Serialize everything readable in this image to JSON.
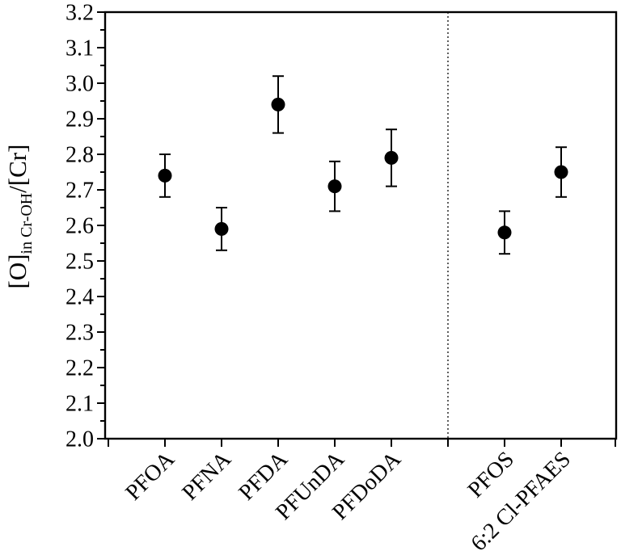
{
  "window": {
    "background": "#ffffff"
  },
  "chart_data": {
    "type": "scatter",
    "title": "",
    "xlabel": "",
    "ylabel": {
      "base": "[O]",
      "subscript": "in Cr-OH",
      "suffix": "/[Cr]",
      "plain": "[O]in Cr-OH/[Cr]"
    },
    "ylim": [
      2.0,
      3.2
    ],
    "y_major_step": 0.1,
    "y_minor_step": 0.05,
    "y_tick_decimals": 1,
    "categories": [
      "PFOA",
      "PFNA",
      "PFDA",
      "PFUnDA",
      "PFDoDA",
      "PFOS",
      "6:2 Cl-PFAES"
    ],
    "series": [
      {
        "name": "O-in-Cr-OH-to-Cr-ratio",
        "marker": "circle",
        "color": "#000000",
        "values": [
          2.74,
          2.59,
          2.94,
          2.71,
          2.79,
          2.58,
          2.75
        ],
        "errors": [
          0.06,
          0.06,
          0.08,
          0.07,
          0.08,
          0.06,
          0.07
        ]
      }
    ],
    "separator": {
      "after_category_index": 4,
      "style": "dotted",
      "color": "#1a1a1a"
    },
    "grid": false,
    "legend": false,
    "axis_color": "#000000"
  }
}
